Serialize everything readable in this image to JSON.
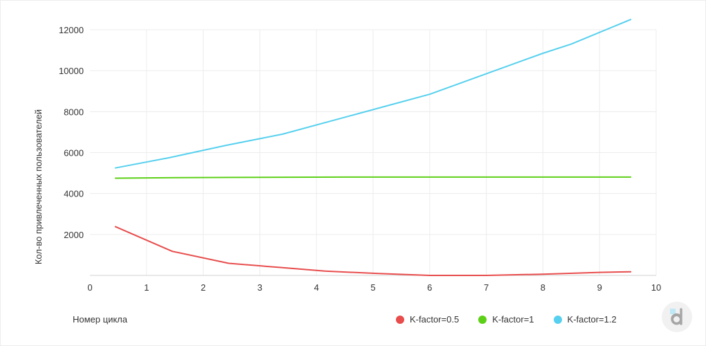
{
  "chart_data": {
    "type": "line",
    "title": "",
    "xlabel": "Номер цикла",
    "ylabel": "Кол-во привлеченных пользователей",
    "xlim": [
      0,
      10
    ],
    "ylim": [
      0,
      12000
    ],
    "x_ticks": [
      0,
      1,
      2,
      3,
      4,
      5,
      6,
      7,
      8,
      9,
      10
    ],
    "y_ticks": [
      2000,
      4000,
      6000,
      8000,
      10000,
      12000
    ],
    "grid": true,
    "legend_position": "bottom-right",
    "series": [
      {
        "name": "K-factor=0.5",
        "color": "#e84c4c",
        "x": [
          0.45,
          1.45,
          2.45,
          3.4,
          4.15,
          5.1,
          6,
          7,
          8,
          9,
          9.55
        ],
        "y": [
          2380,
          1180,
          590,
          380,
          210,
          90,
          0,
          0,
          60,
          150,
          180
        ]
      },
      {
        "name": "K-factor=1",
        "color": "#5cd016",
        "x": [
          0.45,
          1.5,
          2.5,
          3.5,
          4.5,
          5.5,
          6.5,
          7.5,
          8.5,
          9.55
        ],
        "y": [
          4750,
          4775,
          4785,
          4795,
          4805,
          4805,
          4805,
          4805,
          4805,
          4805
        ]
      },
      {
        "name": "K-factor=1.2",
        "color": "#56d0ee",
        "x": [
          0.45,
          1.4,
          2.4,
          3.4,
          4.4,
          5.4,
          6,
          7,
          8,
          8.5,
          9.55
        ],
        "y": [
          5250,
          5750,
          6350,
          6900,
          7650,
          8400,
          8850,
          9850,
          10850,
          11300,
          12500
        ]
      }
    ]
  }
}
